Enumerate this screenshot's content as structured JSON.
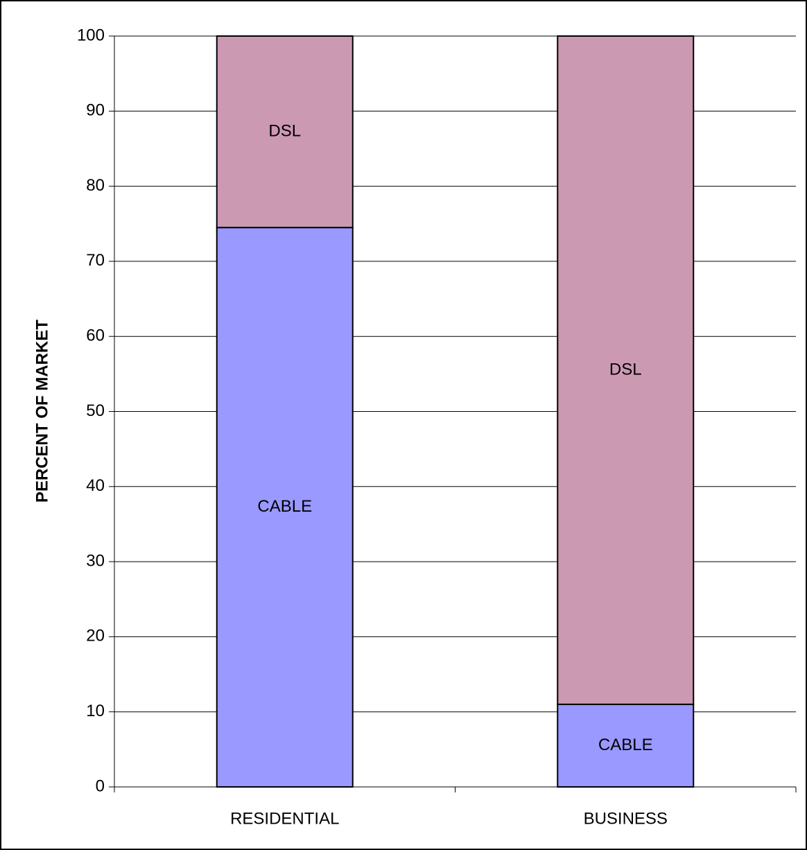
{
  "chart_data": {
    "type": "bar",
    "stacked": true,
    "categories": [
      "RESIDENTIAL",
      "BUSINESS"
    ],
    "series": [
      {
        "name": "CABLE",
        "values": [
          74.5,
          11
        ],
        "color": "#9999ff"
      },
      {
        "name": "DSL",
        "values": [
          25.5,
          89
        ],
        "color": "#cc99b3"
      }
    ],
    "title": "",
    "xlabel": "",
    "ylabel": "PERCENT OF MARKET",
    "ylim": [
      0,
      100
    ],
    "yticks": [
      0,
      10,
      20,
      30,
      40,
      50,
      60,
      70,
      80,
      90,
      100
    ],
    "grid": true,
    "legend": "none (series labelled inside segments)"
  }
}
